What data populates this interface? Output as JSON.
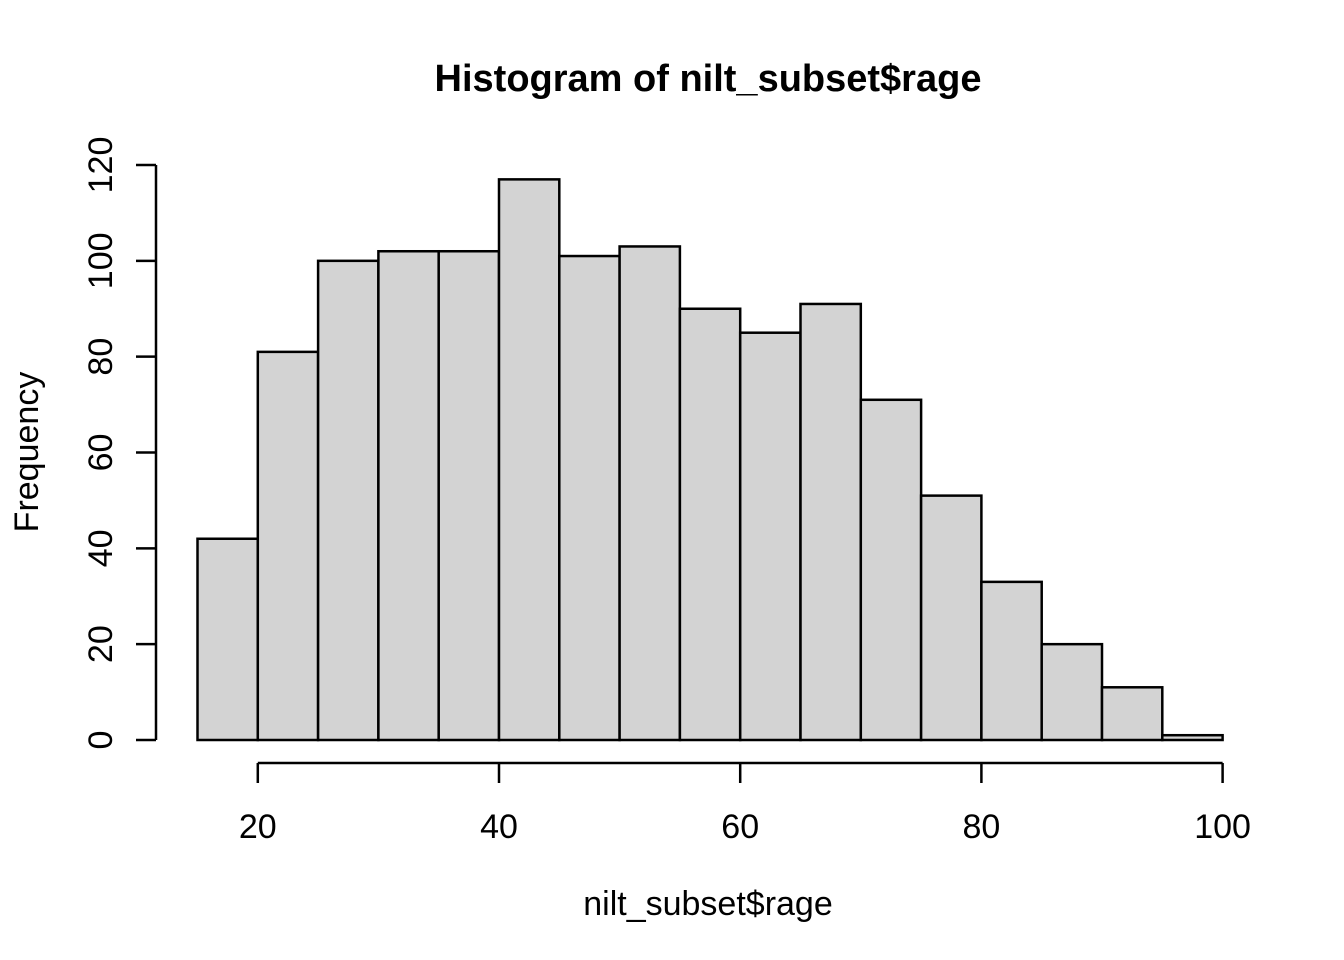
{
  "chart_data": {
    "type": "bar",
    "subtype": "histogram",
    "title": "Histogram of nilt_subset$rage",
    "xlabel": "nilt_subset$rage",
    "ylabel": "Frequency",
    "breaks": [
      15,
      20,
      25,
      30,
      35,
      40,
      45,
      50,
      55,
      60,
      65,
      70,
      75,
      80,
      85,
      90,
      95,
      100
    ],
    "counts": [
      42,
      81,
      100,
      102,
      102,
      117,
      101,
      103,
      90,
      85,
      91,
      71,
      51,
      33,
      20,
      11,
      1
    ],
    "x_ticks": [
      20,
      40,
      60,
      80,
      100
    ],
    "y_ticks": [
      0,
      20,
      40,
      60,
      80,
      100,
      120
    ],
    "xlim": [
      15,
      100
    ],
    "ylim": [
      0,
      120
    ],
    "grid": false,
    "legend": null,
    "bar_fill": "#d3d3d3",
    "bar_border": "#000000",
    "axis_color": "#000000",
    "text_color": "#000000",
    "background": "#ffffff"
  }
}
